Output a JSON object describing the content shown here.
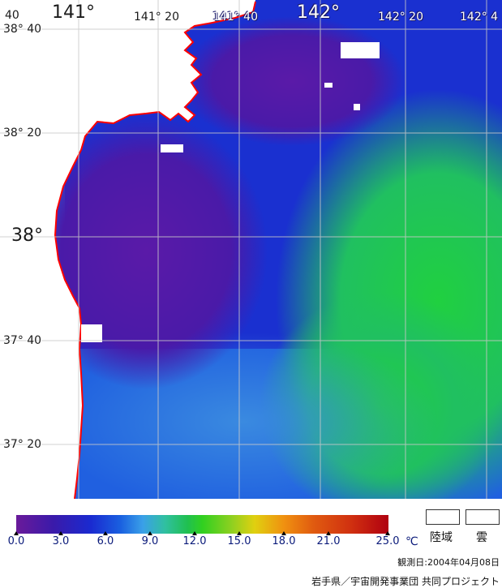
{
  "map": {
    "lat_labels": [
      {
        "id": "lat-3840",
        "text": "38° 40"
      },
      {
        "id": "lat-3820",
        "text": "38° 20"
      },
      {
        "id": "lat-38",
        "text": "38°"
      },
      {
        "id": "lat-3740",
        "text": "37° 40"
      },
      {
        "id": "lat-3720",
        "text": "37° 20"
      }
    ],
    "lon_labels": [
      {
        "id": "lon-141",
        "text": "141°"
      },
      {
        "id": "lon-14120",
        "text": "141° 20"
      },
      {
        "id": "lon-14140",
        "text": "141° 40"
      },
      {
        "id": "lon-142",
        "text": "142°"
      },
      {
        "id": "lon-14220",
        "text": "142° 20"
      },
      {
        "id": "lon-14240",
        "text": "142° 4"
      }
    ],
    "corner_label": "40",
    "colors": {
      "land": "#ffffff",
      "coast": "#ff0000",
      "grid": "#c8c8c8",
      "cold": "#5a1aa8",
      "mid": "#1a30d8",
      "warm": "#20d040"
    }
  },
  "legend": {
    "ticks": [
      "0.0",
      "3.0",
      "6.0",
      "9.0",
      "12.0",
      "15.0",
      "18.0",
      "21.0",
      "25.0"
    ],
    "unit": "℃",
    "land_label": "陸域",
    "cloud_label": "雲",
    "observation_date": "観測日:2004年04月08日",
    "credit": "岩手県／宇宙開発事業団 共同プロジェクト"
  }
}
